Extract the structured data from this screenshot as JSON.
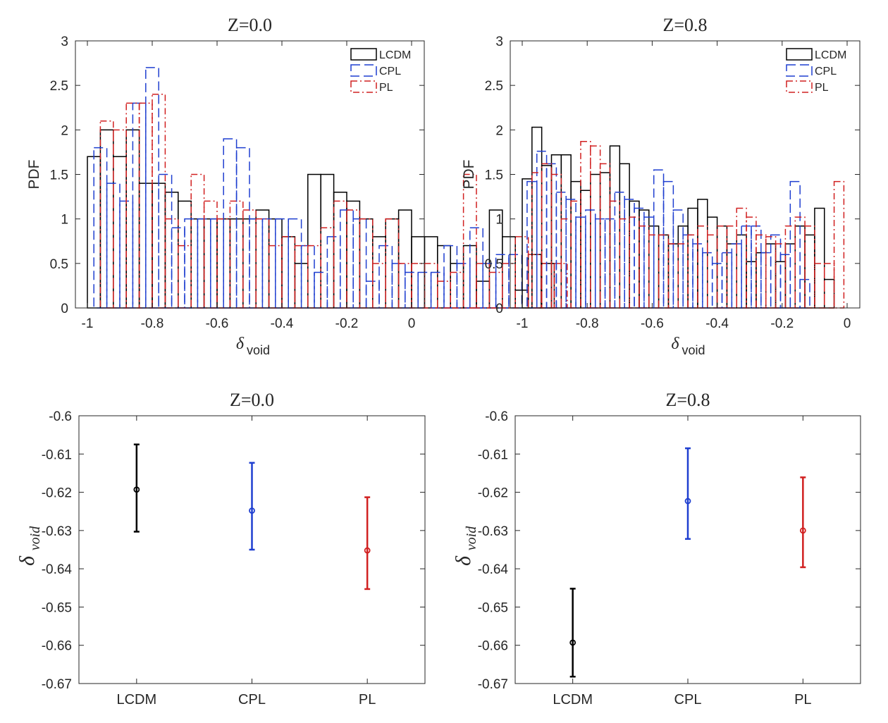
{
  "chart_data": [
    {
      "type": "histogram",
      "title": "Z=0.0",
      "xlabel_base": "δ",
      "xlabel_sub": "void",
      "ylabel": "PDF",
      "xlim": [
        -1,
        0
      ],
      "ylim": [
        0,
        3
      ],
      "xticks": [
        "-1",
        "-0.8",
        "-0.6",
        "-0.4",
        "-0.2",
        "0"
      ],
      "yticks": [
        "0",
        "0.5",
        "1",
        "1.5",
        "2",
        "2.5",
        "3"
      ],
      "bin_width": 0.04,
      "legend": [
        "LCDM",
        "CPL",
        "PL"
      ],
      "series": [
        {
          "name": "LCDM",
          "color": "#000000",
          "style": "solid",
          "x_start": -1.0,
          "values": [
            1.7,
            2.0,
            1.7,
            2.0,
            1.4,
            1.4,
            1.3,
            1.2,
            1.0,
            1.0,
            1.0,
            1.0,
            1.0,
            1.1,
            1.0,
            0.8,
            0.5,
            1.5,
            1.5,
            1.3,
            1.2,
            1.0,
            0.8,
            1.0,
            1.1,
            0.8,
            0.8,
            0.7,
            0.5,
            0.7,
            0.3,
            1.1,
            0.8,
            0.2,
            0.6,
            0.5
          ]
        },
        {
          "name": "CPL",
          "color": "#1f3fd0",
          "style": "dashed",
          "x_start": -0.98,
          "values": [
            1.8,
            1.4,
            1.2,
            2.3,
            2.7,
            1.5,
            0.9,
            1.0,
            1.0,
            1.0,
            1.9,
            1.8,
            1.0,
            1.0,
            1.0,
            1.0,
            0.7,
            0.4,
            0.8,
            1.1,
            1.0,
            0.3,
            0.7,
            0.5,
            0.4,
            0.4,
            0.4,
            0.7,
            0.5,
            0.9,
            0.5,
            0.6,
            0.6
          ]
        },
        {
          "name": "PL",
          "color": "#d12020",
          "style": "dashdot",
          "x_start": -0.96,
          "values": [
            2.1,
            2.0,
            2.3,
            2.3,
            2.4,
            1.0,
            0.7,
            1.5,
            1.2,
            1.0,
            1.2,
            1.1,
            1.0,
            0.7,
            0.8,
            0.7,
            0.7,
            0.9,
            1.2,
            1.1,
            1.0,
            0.5,
            1.0,
            0.5,
            0.5,
            0.5,
            0.3,
            0.4,
            1.5,
            0.5,
            0.4,
            0.5,
            0.8,
            0.6,
            0.5,
            0.5
          ]
        }
      ]
    },
    {
      "type": "histogram",
      "title": "Z=0.8",
      "xlabel_base": "δ",
      "xlabel_sub": "void",
      "ylabel": "PDF",
      "xlim": [
        -1,
        0
      ],
      "ylim": [
        0,
        3
      ],
      "xticks": [
        "-1",
        "-0.8",
        "-0.6",
        "-0.4",
        "-0.2",
        "0"
      ],
      "yticks": [
        "0",
        "0.5",
        "1",
        "1.5",
        "2",
        "2.5",
        "3"
      ],
      "bin_width": 0.03,
      "legend": [
        "LCDM",
        "CPL",
        "PL"
      ],
      "series": [
        {
          "name": "LCDM",
          "color": "#000000",
          "style": "solid",
          "x_start": -1.0,
          "values": [
            1.45,
            2.03,
            1.6,
            1.72,
            1.72,
            1.42,
            1.32,
            1.5,
            1.52,
            1.82,
            1.62,
            1.2,
            1.1,
            0.92,
            0.82,
            0.72,
            0.92,
            1.12,
            1.22,
            1.02,
            0.92,
            0.72,
            0.82,
            0.52,
            0.62,
            0.72,
            0.52,
            0.72,
            0.92,
            0.82,
            1.12,
            0.32
          ]
        },
        {
          "name": "CPL",
          "color": "#1f3fd0",
          "style": "dashed",
          "x_start": -0.985,
          "values": [
            1.42,
            1.76,
            1.62,
            1.3,
            1.22,
            1.02,
            1.1,
            1.0,
            1.0,
            1.3,
            1.22,
            1.12,
            1.02,
            1.55,
            1.42,
            1.1,
            0.82,
            0.72,
            0.62,
            0.5,
            0.62,
            0.72,
            0.92,
            0.92,
            0.62,
            0.82,
            0.6,
            1.42,
            0.32
          ]
        },
        {
          "name": "PL",
          "color": "#d12020",
          "style": "dashdot",
          "x_start": -0.97,
          "values": [
            1.52,
            1.62,
            1.5,
            1.0,
            1.2,
            1.87,
            1.82,
            1.62,
            1.2,
            1.0,
            1.02,
            0.92,
            0.82,
            0.82,
            0.72,
            0.72,
            0.82,
            0.92,
            0.82,
            0.92,
            0.92,
            1.12,
            1.02,
            0.82,
            0.8,
            0.72,
            0.92,
            1.02,
            0.92,
            0.5,
            0.5,
            1.42
          ]
        }
      ]
    },
    {
      "type": "errorbar",
      "title": "Z=0.0",
      "ylabel_base": "δ",
      "ylabel_sub": "void",
      "ylim": [
        -0.67,
        -0.6
      ],
      "yticks": [
        "-0.6",
        "-0.61",
        "-0.62",
        "-0.63",
        "-0.64",
        "-0.65",
        "-0.66",
        "-0.67"
      ],
      "categories": [
        "LCDM",
        "CPL",
        "PL"
      ],
      "points": [
        {
          "name": "LCDM",
          "color": "#000000",
          "mean": -0.6193,
          "low": -0.6303,
          "high": -0.6075
        },
        {
          "name": "CPL",
          "color": "#1f3fd0",
          "mean": -0.6248,
          "low": -0.635,
          "high": -0.6123
        },
        {
          "name": "PL",
          "color": "#d12020",
          "mean": -0.6352,
          "low": -0.6453,
          "high": -0.6213
        }
      ]
    },
    {
      "type": "errorbar",
      "title": "Z=0.8",
      "ylabel_base": "δ",
      "ylabel_sub": "void",
      "ylim": [
        -0.67,
        -0.6
      ],
      "yticks": [
        "-0.6",
        "-0.61",
        "-0.62",
        "-0.63",
        "-0.64",
        "-0.65",
        "-0.66",
        "-0.67"
      ],
      "categories": [
        "LCDM",
        "CPL",
        "PL"
      ],
      "points": [
        {
          "name": "LCDM",
          "color": "#000000",
          "mean": -0.6593,
          "low": -0.6682,
          "high": -0.6452
        },
        {
          "name": "CPL",
          "color": "#1f3fd0",
          "mean": -0.6223,
          "low": -0.6322,
          "high": -0.6085
        },
        {
          "name": "PL",
          "color": "#d12020",
          "mean": -0.63,
          "low": -0.6396,
          "high": -0.6161
        }
      ]
    }
  ]
}
